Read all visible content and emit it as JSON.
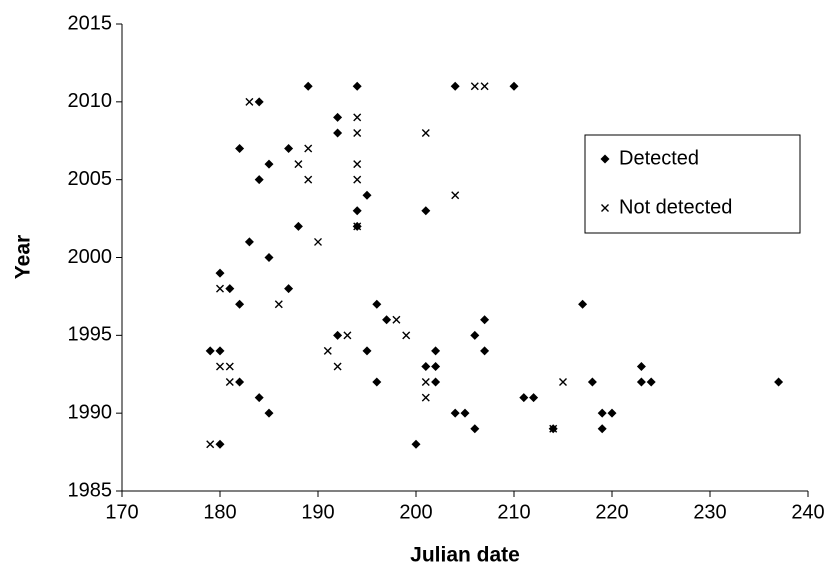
{
  "chart_data": {
    "type": "scatter",
    "x_label": "Julian date",
    "y_label": "Year",
    "xlim": [
      170,
      240
    ],
    "xticks": [
      170,
      180,
      190,
      200,
      210,
      220,
      230,
      240
    ],
    "ylim": [
      1985,
      2015
    ],
    "yticks": [
      1985,
      1990,
      1995,
      2000,
      2005,
      2010,
      2015
    ],
    "grid": false,
    "legend": "upper right",
    "series": [
      {
        "name": "Detected",
        "color": "#000000",
        "marker": "diamond",
        "x": [
          179,
          180,
          180,
          180,
          181,
          182,
          182,
          182,
          183,
          184,
          184,
          184,
          185,
          185,
          185,
          187,
          187,
          188,
          189,
          192,
          192,
          192,
          194,
          194,
          194,
          195,
          195,
          196,
          196,
          197,
          200,
          201,
          201,
          202,
          202,
          202,
          204,
          204,
          205,
          206,
          206,
          207,
          207,
          210,
          211,
          212,
          214,
          217,
          218,
          219,
          219,
          220,
          223,
          223,
          224,
          237
        ],
        "values": [
          1994,
          1994,
          1988,
          1999,
          1998,
          1997,
          1992,
          2007,
          2001,
          2010,
          2005,
          1991,
          2006,
          2000,
          1990,
          2007,
          1998,
          2002,
          2011,
          2009,
          2008,
          1995,
          2011,
          2003,
          2002,
          2004,
          1994,
          1997,
          1992,
          1996,
          1988,
          2003,
          1993,
          1993,
          1994,
          1992,
          2011,
          1990,
          1990,
          1995,
          1989,
          1996,
          1994,
          2011,
          1991,
          1991,
          1989,
          1997,
          1992,
          1990,
          1989,
          1990,
          1993,
          1992,
          1992,
          1992
        ]
      },
      {
        "name": "Not detected",
        "color": "#000000",
        "marker": "x",
        "x": [
          179,
          180,
          180,
          181,
          181,
          183,
          186,
          188,
          189,
          189,
          190,
          191,
          192,
          193,
          194,
          194,
          194,
          194,
          194,
          198,
          199,
          201,
          201,
          201,
          204,
          206,
          207,
          214,
          215
        ],
        "values": [
          1988,
          1998,
          1993,
          1993,
          1992,
          2010,
          1997,
          2006,
          2007,
          2005,
          2001,
          1994,
          1993,
          1995,
          2009,
          2008,
          2006,
          2005,
          2002,
          1996,
          1995,
          2008,
          1992,
          1991,
          2004,
          2011,
          2011,
          1989,
          1992
        ]
      }
    ]
  }
}
